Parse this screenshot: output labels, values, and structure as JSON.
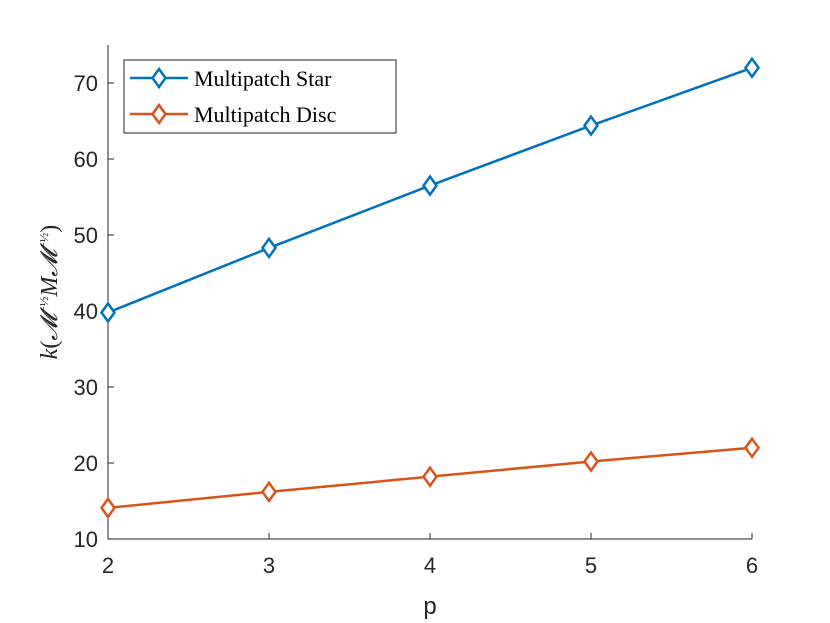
{
  "chart_data": {
    "type": "line",
    "x": [
      2,
      3,
      4,
      5,
      6
    ],
    "series": [
      {
        "name": "Multipatch Star",
        "color": "#0072BD",
        "marker": "diamond",
        "values": [
          39.8,
          48.3,
          56.5,
          64.4,
          72.0
        ]
      },
      {
        "name": "Multipatch Disc",
        "color": "#D95319",
        "marker": "diamond",
        "values": [
          14.1,
          16.2,
          18.2,
          20.2,
          22.0
        ]
      }
    ],
    "xlabel": "p",
    "ylabel": "k(𝓜^{-1/2} M 𝓜^{-1/2})",
    "ylabel_parts": {
      "k": "k",
      "open": "(",
      "M1": "𝓜",
      "exp": "−½",
      "M": "M",
      "M2": "𝓜",
      "close": ")"
    },
    "xlim": [
      2,
      6
    ],
    "ylim": [
      10,
      75
    ],
    "xticks": [
      "2",
      "3",
      "4",
      "5",
      "6"
    ],
    "yticks": [
      "10",
      "20",
      "30",
      "40",
      "50",
      "60",
      "70"
    ],
    "grid": false,
    "legend_position": "top-left",
    "axis_color": "#262626"
  }
}
